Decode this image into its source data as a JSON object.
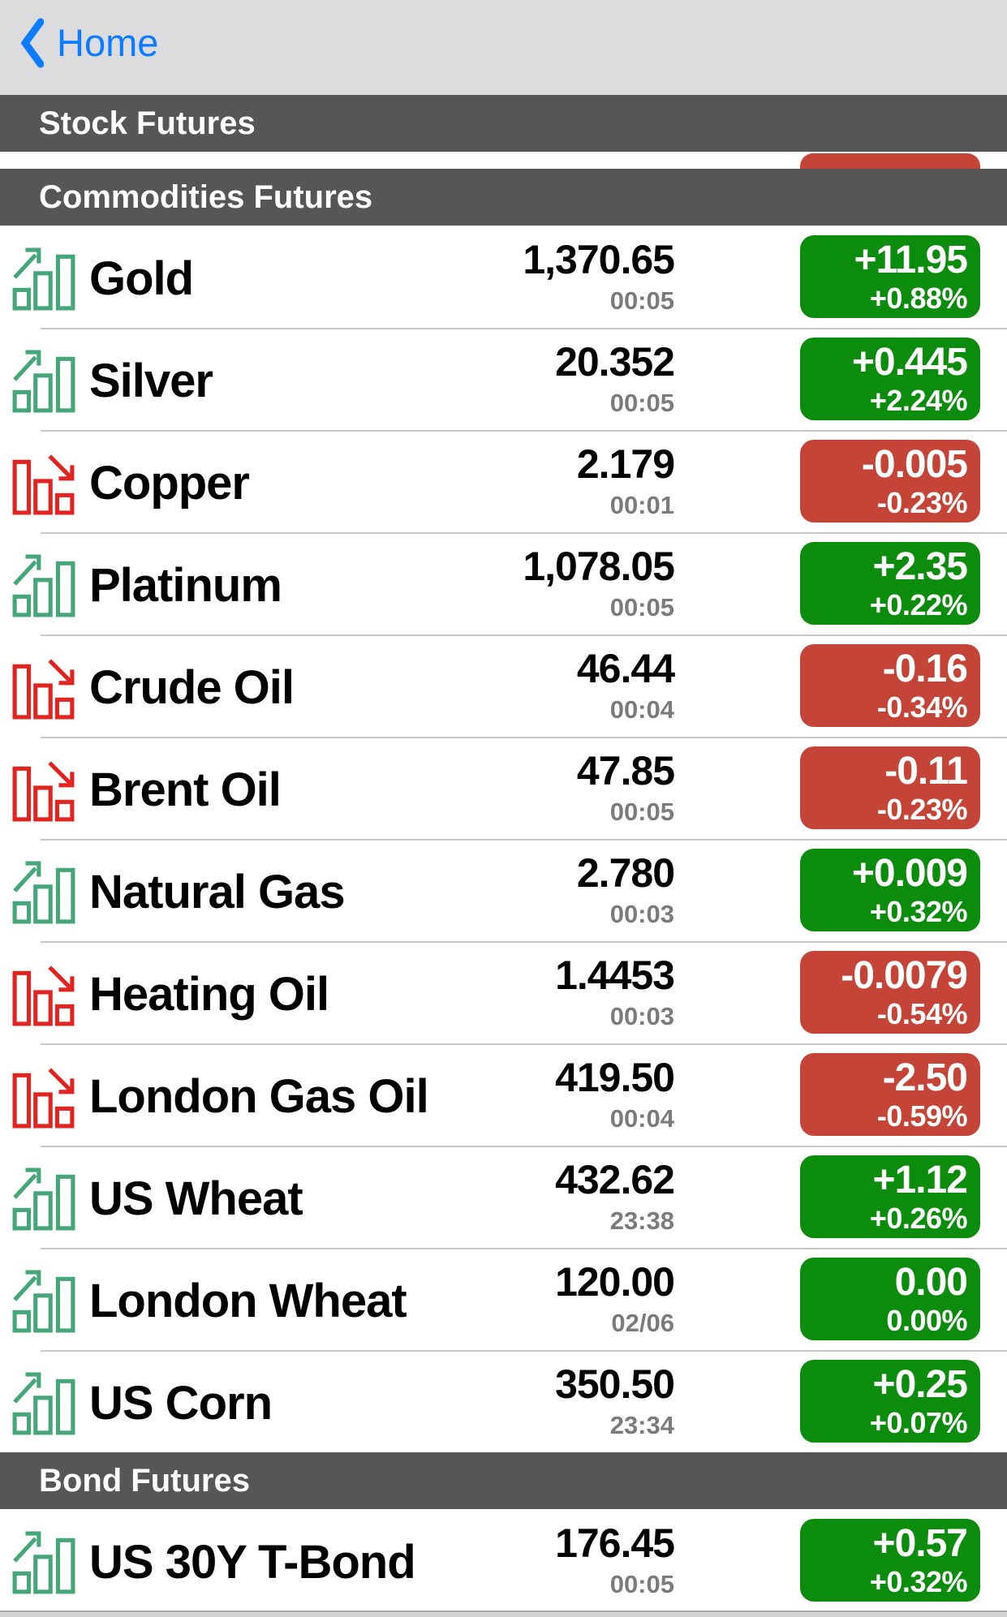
{
  "nav": {
    "back_label": "Home"
  },
  "colors": {
    "accent_blue": "#0b7bff",
    "nav_bg": "#dcdcde",
    "header_bg": "#565656",
    "up_badge": "#0c8c0c",
    "down_badge": "#c54438",
    "icon_up": "#45a679",
    "icon_down": "#e22420",
    "time_text": "#7b7b7d"
  },
  "sections": [
    {
      "title": "Stock Futures",
      "clipped_row": {
        "badge": "down"
      },
      "rows": []
    },
    {
      "title": "Commodities Futures",
      "rows": [
        {
          "name": "Gold",
          "direction": "up",
          "price": "1,370.65",
          "time": "00:05",
          "change": "+11.95",
          "change_pct": "+0.88%"
        },
        {
          "name": "Silver",
          "direction": "up",
          "price": "20.352",
          "time": "00:05",
          "change": "+0.445",
          "change_pct": "+2.24%"
        },
        {
          "name": "Copper",
          "direction": "down",
          "price": "2.179",
          "time": "00:01",
          "change": "-0.005",
          "change_pct": "-0.23%"
        },
        {
          "name": "Platinum",
          "direction": "up",
          "price": "1,078.05",
          "time": "00:05",
          "change": "+2.35",
          "change_pct": "+0.22%"
        },
        {
          "name": "Crude Oil",
          "direction": "down",
          "price": "46.44",
          "time": "00:04",
          "change": "-0.16",
          "change_pct": "-0.34%"
        },
        {
          "name": "Brent Oil",
          "direction": "down",
          "price": "47.85",
          "time": "00:05",
          "change": "-0.11",
          "change_pct": "-0.23%"
        },
        {
          "name": "Natural Gas",
          "direction": "up",
          "price": "2.780",
          "time": "00:03",
          "change": "+0.009",
          "change_pct": "+0.32%"
        },
        {
          "name": "Heating Oil",
          "direction": "down",
          "price": "1.4453",
          "time": "00:03",
          "change": "-0.0079",
          "change_pct": "-0.54%"
        },
        {
          "name": "London Gas Oil",
          "direction": "down",
          "price": "419.50",
          "time": "00:04",
          "change": "-2.50",
          "change_pct": "-0.59%"
        },
        {
          "name": "US Wheat",
          "direction": "up",
          "price": "432.62",
          "time": "23:38",
          "change": "+1.12",
          "change_pct": "+0.26%"
        },
        {
          "name": "London Wheat",
          "direction": "up",
          "price": "120.00",
          "time": "02/06",
          "change": "0.00",
          "change_pct": "0.00%"
        },
        {
          "name": "US Corn",
          "direction": "up",
          "price": "350.50",
          "time": "23:34",
          "change": "+0.25",
          "change_pct": "+0.07%"
        }
      ]
    },
    {
      "title": "Bond Futures",
      "rows": [
        {
          "name": "US 30Y T-Bond",
          "direction": "up",
          "price": "176.45",
          "time": "00:05",
          "change": "+0.57",
          "change_pct": "+0.32%"
        }
      ]
    }
  ]
}
